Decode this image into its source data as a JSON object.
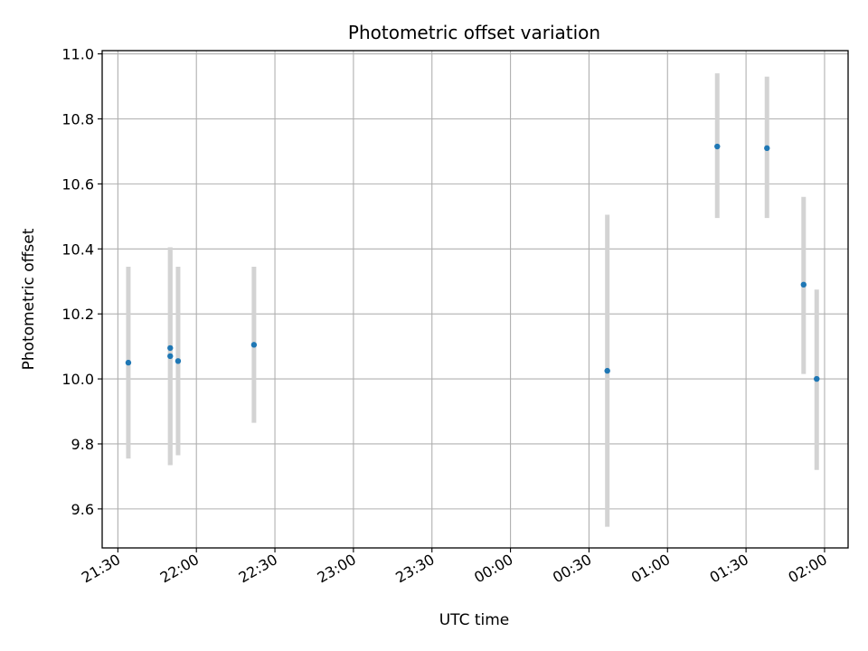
{
  "chart_data": {
    "type": "scatter",
    "title": "Photometric offset variation",
    "xlabel": "UTC time",
    "ylabel": "Photometric offset",
    "x_axis_kind": "time",
    "xlim": [
      "21:24",
      "02:09"
    ],
    "ylim": [
      9.48,
      11.01
    ],
    "x_ticks": [
      "21:30",
      "22:00",
      "22:30",
      "23:00",
      "23:30",
      "00:00",
      "00:30",
      "01:00",
      "01:30",
      "02:00"
    ],
    "y_ticks": [
      9.6,
      9.8,
      10.0,
      10.2,
      10.4,
      10.6,
      10.8,
      11.0
    ],
    "y_tick_labels": [
      "9.6",
      "9.8",
      "10.0",
      "10.2",
      "10.4",
      "10.6",
      "10.8",
      "11.0"
    ],
    "grid": true,
    "marker_color": "#1f77b4",
    "errorbar_color": "#d3d3d3",
    "points": [
      {
        "x": "21:34",
        "y": 10.05,
        "err_low": 9.755,
        "err_high": 10.345
      },
      {
        "x": "21:50",
        "y": 10.07,
        "err_low": 9.735,
        "err_high": 10.405
      },
      {
        "x": "21:50",
        "y": 10.095,
        "err_low": 9.735,
        "err_high": 10.405
      },
      {
        "x": "21:53",
        "y": 10.055,
        "err_low": 9.765,
        "err_high": 10.345
      },
      {
        "x": "22:22",
        "y": 10.105,
        "err_low": 9.865,
        "err_high": 10.345
      },
      {
        "x": "00:37",
        "y": 10.025,
        "err_low": 9.545,
        "err_high": 10.505
      },
      {
        "x": "01:19",
        "y": 10.715,
        "err_low": 10.495,
        "err_high": 10.94
      },
      {
        "x": "01:38",
        "y": 10.71,
        "err_low": 10.495,
        "err_high": 10.93
      },
      {
        "x": "01:52",
        "y": 10.29,
        "err_low": 10.015,
        "err_high": 10.56
      },
      {
        "x": "01:57",
        "y": 10.0,
        "err_low": 9.72,
        "err_high": 10.275
      }
    ]
  }
}
